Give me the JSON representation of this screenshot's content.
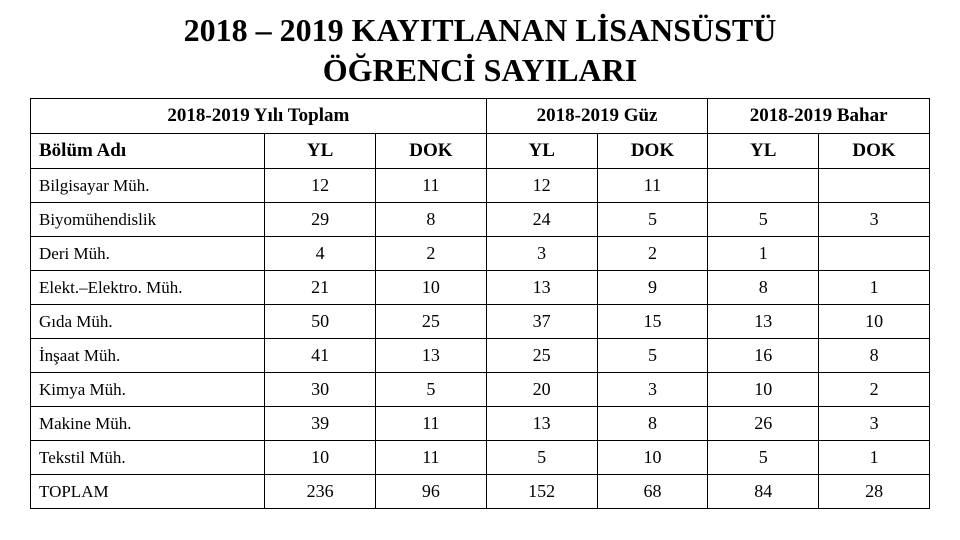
{
  "title_line1": "2018 – 2019 KAYITLANAN LİSANSÜSTÜ",
  "title_line2": "ÖĞRENCİ SAYILARI",
  "headers": {
    "group_total": "2018-2019 Yılı Toplam",
    "group_guz": "2018-2019 Güz",
    "group_bahar": "2018-2019 Bahar",
    "dept": "Bölüm Adı",
    "yl": "YL",
    "dok": "DOK"
  },
  "rows": [
    {
      "label": "Bilgisayar Müh.",
      "tot_yl": "12",
      "tot_dok": "11",
      "guz_yl": "12",
      "guz_dok": "11",
      "bahar_yl": "",
      "bahar_dok": ""
    },
    {
      "label": "Biyomühendislik",
      "tot_yl": "29",
      "tot_dok": "8",
      "guz_yl": "24",
      "guz_dok": "5",
      "bahar_yl": "5",
      "bahar_dok": "3"
    },
    {
      "label": "Deri Müh.",
      "tot_yl": "4",
      "tot_dok": "2",
      "guz_yl": "3",
      "guz_dok": "2",
      "bahar_yl": "1",
      "bahar_dok": ""
    },
    {
      "label": "Elekt.–Elektro. Müh.",
      "tot_yl": "21",
      "tot_dok": "10",
      "guz_yl": "13",
      "guz_dok": "9",
      "bahar_yl": "8",
      "bahar_dok": "1"
    },
    {
      "label": "Gıda Müh.",
      "tot_yl": "50",
      "tot_dok": "25",
      "guz_yl": "37",
      "guz_dok": "15",
      "bahar_yl": "13",
      "bahar_dok": "10"
    },
    {
      "label": "İnşaat Müh.",
      "tot_yl": "41",
      "tot_dok": "13",
      "guz_yl": "25",
      "guz_dok": "5",
      "bahar_yl": "16",
      "bahar_dok": "8"
    },
    {
      "label": "Kimya Müh.",
      "tot_yl": "30",
      "tot_dok": "5",
      "guz_yl": "20",
      "guz_dok": "3",
      "bahar_yl": "10",
      "bahar_dok": "2"
    },
    {
      "label": "Makine Müh.",
      "tot_yl": "39",
      "tot_dok": "11",
      "guz_yl": "13",
      "guz_dok": "8",
      "bahar_yl": "26",
      "bahar_dok": "3"
    },
    {
      "label": "Tekstil Müh.",
      "tot_yl": "10",
      "tot_dok": "11",
      "guz_yl": "5",
      "guz_dok": "10",
      "bahar_yl": "5",
      "bahar_dok": "1"
    },
    {
      "label": "TOPLAM",
      "tot_yl": "236",
      "tot_dok": "96",
      "guz_yl": "152",
      "guz_dok": "68",
      "bahar_yl": "84",
      "bahar_dok": "28"
    }
  ],
  "styling": {
    "font_family": "Times New Roman",
    "title_fontsize": 32,
    "header_fontsize": 19,
    "cell_fontsize": 18,
    "border_color": "#000000",
    "background_color": "#ffffff",
    "text_color": "#000000"
  }
}
